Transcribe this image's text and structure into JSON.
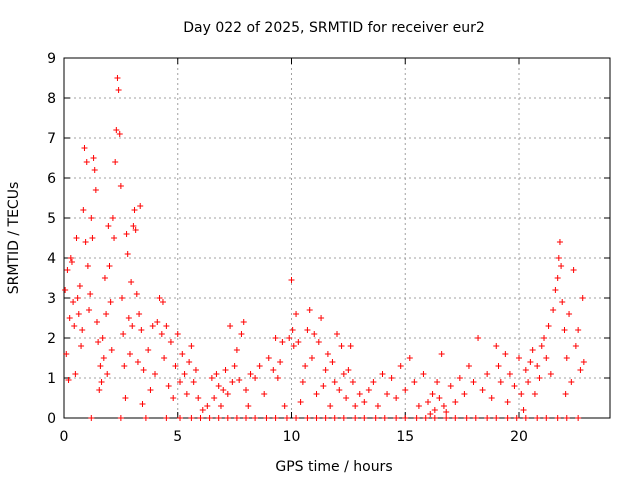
{
  "chart_data": {
    "type": "scatter",
    "title": "Day 022 of 2025, SRMTID for receiver eur2",
    "xlabel": "GPS time / hours",
    "ylabel": "SRMTID / TECUs",
    "xlim": [
      0,
      24
    ],
    "ylim": [
      0,
      9
    ],
    "xticks": [
      0,
      5,
      10,
      15,
      20
    ],
    "yticks": [
      0,
      1,
      2,
      3,
      4,
      5,
      6,
      7,
      8,
      9
    ],
    "grid": true,
    "marker": "+",
    "colors": {
      "series": "#ff0000",
      "grid": "#a0a0a0",
      "axes": "#000000"
    },
    "series": [
      {
        "name": "SRMTID",
        "points": [
          [
            0.05,
            3.2
          ],
          [
            0.1,
            1.6
          ],
          [
            0.15,
            3.7
          ],
          [
            0.2,
            0.95
          ],
          [
            0.25,
            2.5
          ],
          [
            0.3,
            4.0
          ],
          [
            0.35,
            3.9
          ],
          [
            0.4,
            2.9
          ],
          [
            0.45,
            2.3
          ],
          [
            0.5,
            1.1
          ],
          [
            0.55,
            4.5
          ],
          [
            0.6,
            3.0
          ],
          [
            0.65,
            2.6
          ],
          [
            0.7,
            3.3
          ],
          [
            0.75,
            1.8
          ],
          [
            0.8,
            2.2
          ],
          [
            0.85,
            5.2
          ],
          [
            0.9,
            6.75
          ],
          [
            0.95,
            4.4
          ],
          [
            1.0,
            6.4
          ],
          [
            1.05,
            3.8
          ],
          [
            1.1,
            2.7
          ],
          [
            1.15,
            3.1
          ],
          [
            1.2,
            5.0
          ],
          [
            1.25,
            4.5
          ],
          [
            1.3,
            6.5
          ],
          [
            1.35,
            6.2
          ],
          [
            1.4,
            5.7
          ],
          [
            1.45,
            2.4
          ],
          [
            1.5,
            1.9
          ],
          [
            1.55,
            0.7
          ],
          [
            1.6,
            1.3
          ],
          [
            1.65,
            0.9
          ],
          [
            1.7,
            2.0
          ],
          [
            1.75,
            1.5
          ],
          [
            1.8,
            3.5
          ],
          [
            1.85,
            2.6
          ],
          [
            1.9,
            1.1
          ],
          [
            1.95,
            4.8
          ],
          [
            2.0,
            3.8
          ],
          [
            2.05,
            2.9
          ],
          [
            2.1,
            1.7
          ],
          [
            2.15,
            5.0
          ],
          [
            2.2,
            4.5
          ],
          [
            2.25,
            6.4
          ],
          [
            2.3,
            7.2
          ],
          [
            2.35,
            8.5
          ],
          [
            2.4,
            8.2
          ],
          [
            2.45,
            7.1
          ],
          [
            2.5,
            5.8
          ],
          [
            2.55,
            3.0
          ],
          [
            2.6,
            2.1
          ],
          [
            2.65,
            1.3
          ],
          [
            2.7,
            0.5
          ],
          [
            2.75,
            4.6
          ],
          [
            2.8,
            4.1
          ],
          [
            2.85,
            2.5
          ],
          [
            2.9,
            1.6
          ],
          [
            2.95,
            3.4
          ],
          [
            3.0,
            2.3
          ],
          [
            3.05,
            4.8
          ],
          [
            3.1,
            5.2
          ],
          [
            3.15,
            4.7
          ],
          [
            3.2,
            3.1
          ],
          [
            3.25,
            1.4
          ],
          [
            3.3,
            2.6
          ],
          [
            3.35,
            5.3
          ],
          [
            3.4,
            2.2
          ],
          [
            3.45,
            0.35
          ],
          [
            3.5,
            1.2
          ],
          [
            3.7,
            1.7
          ],
          [
            3.8,
            0.7
          ],
          [
            3.9,
            2.3
          ],
          [
            4.0,
            1.1
          ],
          [
            4.1,
            2.4
          ],
          [
            4.2,
            3.0
          ],
          [
            4.3,
            2.1
          ],
          [
            4.35,
            2.9
          ],
          [
            4.4,
            1.5
          ],
          [
            4.5,
            2.3
          ],
          [
            4.6,
            0.8
          ],
          [
            4.7,
            1.9
          ],
          [
            4.8,
            0.5
          ],
          [
            4.9,
            1.3
          ],
          [
            5.0,
            2.1
          ],
          [
            5.1,
            0.9
          ],
          [
            5.2,
            1.6
          ],
          [
            5.3,
            1.1
          ],
          [
            5.4,
            0.6
          ],
          [
            5.5,
            1.4
          ],
          [
            5.6,
            1.8
          ],
          [
            5.7,
            0.9
          ],
          [
            5.8,
            1.2
          ],
          [
            5.9,
            0.5
          ],
          [
            6.1,
            0.2
          ],
          [
            6.3,
            0.3
          ],
          [
            6.5,
            1.0
          ],
          [
            6.6,
            0.5
          ],
          [
            6.7,
            1.1
          ],
          [
            6.8,
            0.8
          ],
          [
            6.9,
            0.3
          ],
          [
            7.0,
            0.7
          ],
          [
            7.1,
            1.2
          ],
          [
            7.2,
            0.6
          ],
          [
            7.3,
            2.3
          ],
          [
            7.4,
            0.9
          ],
          [
            7.5,
            1.3
          ],
          [
            7.6,
            1.7
          ],
          [
            7.7,
            0.95
          ],
          [
            7.8,
            2.1
          ],
          [
            7.9,
            2.4
          ],
          [
            8.0,
            0.7
          ],
          [
            8.1,
            0.3
          ],
          [
            8.2,
            1.1
          ],
          [
            8.4,
            1.0
          ],
          [
            8.6,
            1.3
          ],
          [
            8.8,
            0.6
          ],
          [
            9.0,
            1.5
          ],
          [
            9.2,
            1.2
          ],
          [
            9.3,
            2.0
          ],
          [
            9.4,
            1.0
          ],
          [
            9.5,
            1.4
          ],
          [
            9.6,
            1.9
          ],
          [
            9.7,
            0.3
          ],
          [
            9.9,
            2.0
          ],
          [
            10.0,
            3.45
          ],
          [
            10.05,
            2.2
          ],
          [
            10.1,
            1.8
          ],
          [
            10.2,
            2.6
          ],
          [
            10.3,
            1.9
          ],
          [
            10.4,
            0.4
          ],
          [
            10.5,
            0.9
          ],
          [
            10.6,
            1.3
          ],
          [
            10.7,
            2.2
          ],
          [
            10.8,
            2.7
          ],
          [
            10.9,
            1.5
          ],
          [
            11.0,
            2.1
          ],
          [
            11.1,
            0.6
          ],
          [
            11.2,
            1.9
          ],
          [
            11.3,
            2.5
          ],
          [
            11.4,
            0.8
          ],
          [
            11.5,
            1.2
          ],
          [
            11.6,
            1.6
          ],
          [
            11.7,
            0.3
          ],
          [
            11.8,
            1.4
          ],
          [
            11.9,
            0.9
          ],
          [
            12.0,
            2.1
          ],
          [
            12.1,
            0.7
          ],
          [
            12.2,
            1.8
          ],
          [
            12.3,
            1.1
          ],
          [
            12.4,
            0.5
          ],
          [
            12.5,
            1.2
          ],
          [
            12.6,
            1.8
          ],
          [
            12.7,
            0.9
          ],
          [
            12.8,
            0.3
          ],
          [
            13.0,
            0.6
          ],
          [
            13.2,
            0.4
          ],
          [
            13.4,
            0.7
          ],
          [
            13.6,
            0.9
          ],
          [
            13.8,
            0.3
          ],
          [
            14.0,
            1.1
          ],
          [
            14.2,
            0.6
          ],
          [
            14.4,
            1.0
          ],
          [
            14.6,
            0.5
          ],
          [
            14.8,
            1.3
          ],
          [
            15.0,
            0.7
          ],
          [
            15.2,
            1.5
          ],
          [
            15.4,
            0.9
          ],
          [
            15.6,
            0.3
          ],
          [
            15.8,
            1.1
          ],
          [
            16.0,
            0.4
          ],
          [
            16.1,
            0.1
          ],
          [
            16.2,
            0.6
          ],
          [
            16.3,
            0.2
          ],
          [
            16.4,
            0.9
          ],
          [
            16.5,
            0.5
          ],
          [
            16.6,
            1.6
          ],
          [
            16.7,
            0.3
          ],
          [
            16.8,
            0.15
          ],
          [
            17.0,
            0.8
          ],
          [
            17.2,
            0.4
          ],
          [
            17.4,
            1.0
          ],
          [
            17.6,
            0.6
          ],
          [
            17.8,
            1.3
          ],
          [
            18.0,
            0.9
          ],
          [
            18.2,
            2.0
          ],
          [
            18.4,
            0.7
          ],
          [
            18.6,
            1.1
          ],
          [
            18.8,
            0.5
          ],
          [
            19.0,
            1.8
          ],
          [
            19.1,
            1.3
          ],
          [
            19.2,
            0.9
          ],
          [
            19.4,
            1.6
          ],
          [
            19.5,
            0.4
          ],
          [
            19.6,
            1.1
          ],
          [
            19.8,
            0.8
          ],
          [
            20.0,
            1.5
          ],
          [
            20.1,
            0.6
          ],
          [
            20.2,
            0.2
          ],
          [
            20.3,
            1.2
          ],
          [
            20.4,
            0.9
          ],
          [
            20.5,
            1.4
          ],
          [
            20.6,
            1.7
          ],
          [
            20.7,
            0.6
          ],
          [
            20.8,
            1.3
          ],
          [
            20.9,
            1.0
          ],
          [
            21.0,
            1.8
          ],
          [
            21.1,
            2.0
          ],
          [
            21.2,
            1.5
          ],
          [
            21.3,
            2.3
          ],
          [
            21.4,
            1.1
          ],
          [
            21.5,
            2.7
          ],
          [
            21.6,
            3.2
          ],
          [
            21.7,
            3.5
          ],
          [
            21.75,
            4.0
          ],
          [
            21.8,
            4.4
          ],
          [
            21.85,
            3.8
          ],
          [
            21.9,
            2.9
          ],
          [
            22.0,
            2.2
          ],
          [
            22.05,
            0.6
          ],
          [
            22.1,
            1.5
          ],
          [
            22.2,
            2.6
          ],
          [
            22.3,
            0.9
          ],
          [
            22.4,
            3.7
          ],
          [
            22.5,
            1.8
          ],
          [
            22.6,
            2.2
          ],
          [
            22.7,
            1.2
          ],
          [
            22.8,
            3.0
          ],
          [
            22.85,
            1.4
          ]
        ],
        "zero_points_x": [
          1.2,
          2.5,
          3.6,
          4.5,
          5.1,
          5.6,
          6.0,
          6.4,
          6.8,
          7.2,
          7.6,
          8.0,
          8.4,
          8.9,
          9.3,
          9.8,
          10.2,
          10.7,
          11.1,
          11.5,
          11.9,
          12.3,
          12.8,
          13.2,
          13.7,
          14.1,
          14.6,
          15.0,
          15.5,
          15.9,
          16.3,
          16.8,
          17.2,
          17.7,
          18.1,
          18.6,
          19.0,
          19.5,
          19.9,
          20.3,
          20.8,
          21.2,
          21.7,
          22.1,
          22.6
        ]
      }
    ]
  }
}
